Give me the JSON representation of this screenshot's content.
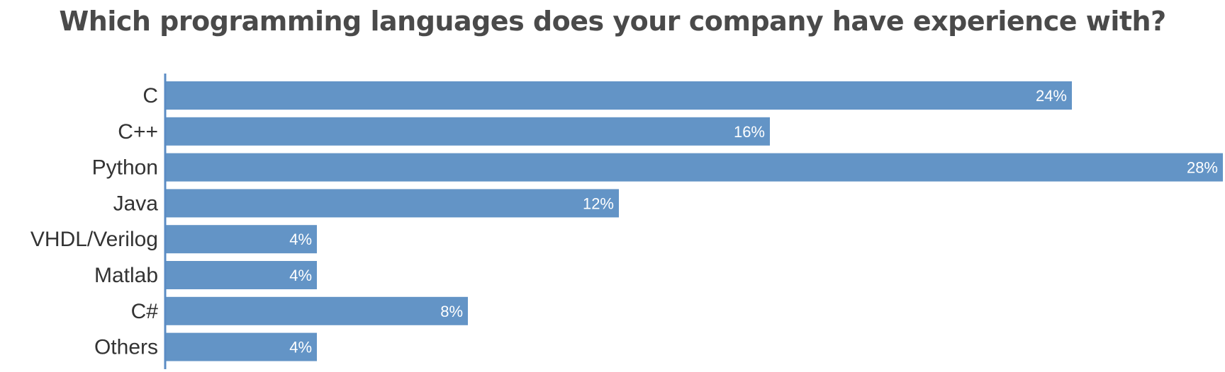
{
  "chart_data": {
    "type": "bar",
    "orientation": "horizontal",
    "title": "Which programming languages does your company have experience with?",
    "categories": [
      "C",
      "C++",
      "Python",
      "Java",
      "VHDL/Verilog",
      "Matlab",
      "C#",
      "Others"
    ],
    "values": [
      24,
      16,
      28,
      12,
      4,
      4,
      8,
      4
    ],
    "value_labels": [
      "24%",
      "16%",
      "28%",
      "12%",
      "4%",
      "4%",
      "8%",
      "4%"
    ],
    "unit": "%",
    "xlim": [
      0,
      28
    ],
    "grid": false,
    "legend": "none",
    "bar_color": "#6394c6",
    "axis_color": "#5b8cc4",
    "title_color": "#4a4a4a",
    "label_color": "#333333"
  }
}
